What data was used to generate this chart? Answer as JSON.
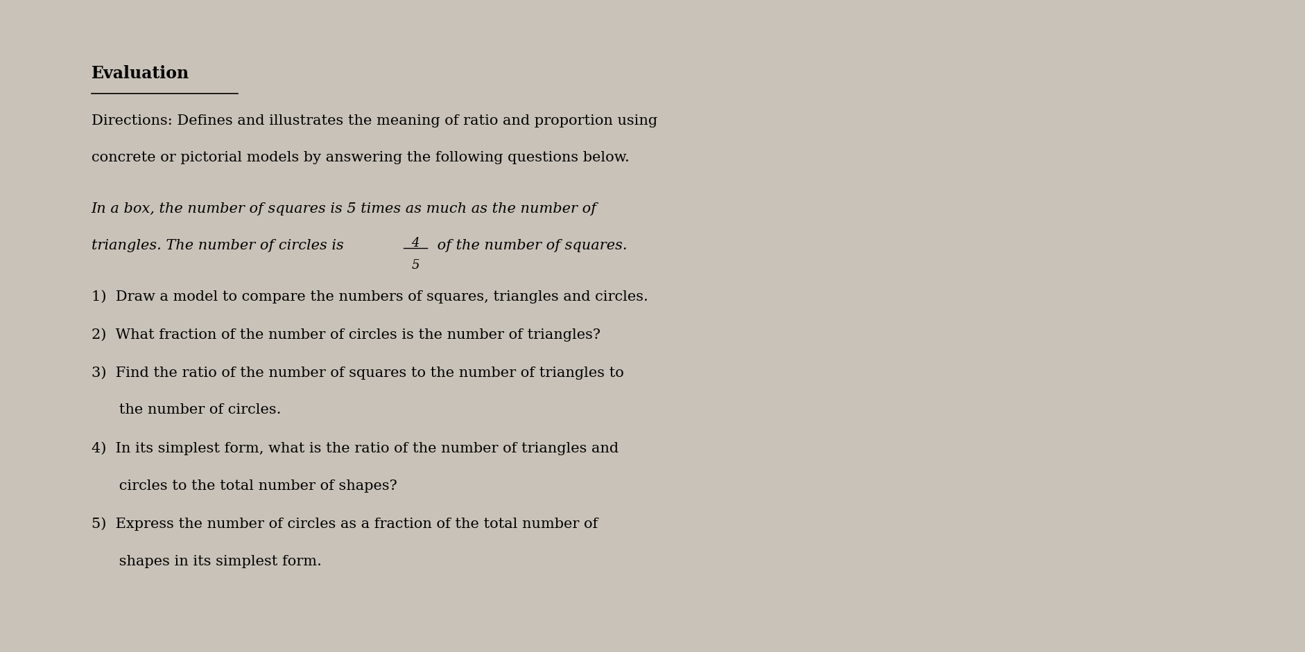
{
  "bg_color": "#c8c2b8",
  "paper_color": "#e0dbd2",
  "title": "Evaluation",
  "directions_line1": "Directions: Defines and illustrates the meaning of ratio and proportion using",
  "directions_line2": "concrete or pictorial models by answering the following questions below.",
  "italic_line1": "In a box, the number of squares is 5 times as much as the number of",
  "italic_line2_before_frac": "triangles. The number of circles is ",
  "frac_num": "4",
  "frac_den": "5",
  "italic_line2_after_frac": " of the number of squares.",
  "q1": "1)  Draw a model to compare the numbers of squares, triangles and circles.",
  "q2": "2)  What fraction of the number of circles is the number of triangles?",
  "q3a": "3)  Find the ratio of the number of squares to the number of triangles to",
  "q3b": "      the number of circles.",
  "q4a": "4)  In its simplest form, what is the ratio of the number of triangles and",
  "q4b": "      circles to the total number of shapes?",
  "q5a": "5)  Express the number of circles as a fraction of the total number of",
  "q5b": "      shapes in its simplest form."
}
